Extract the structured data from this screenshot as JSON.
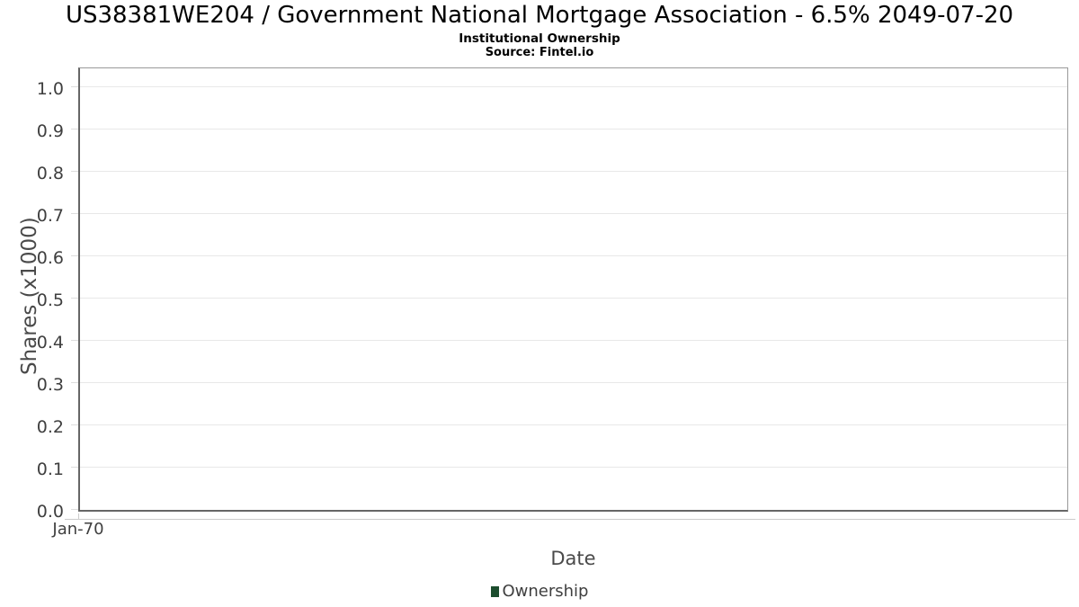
{
  "header": {
    "title": "US38381WE204 / Government National Mortgage Association - 6.5% 2049-07-20",
    "subtitle": "Institutional Ownership",
    "source": "Source: Fintel.io"
  },
  "chart_data": {
    "type": "bar",
    "title": "US38381WE204 / Government National Mortgage Association - 6.5% 2049-07-20",
    "subtitle": "Institutional Ownership",
    "source": "Source: Fintel.io",
    "xlabel": "Date",
    "ylabel": "Shares (x1000)",
    "x_tick_labels": [
      "Jan-70"
    ],
    "y_ticks": [
      "0.0",
      "0.1",
      "0.2",
      "0.3",
      "0.4",
      "0.5",
      "0.6",
      "0.7",
      "0.8",
      "0.9",
      "1.0"
    ],
    "ylim": [
      0,
      1.05
    ],
    "grid": true,
    "legend_position": "bottom",
    "series": [
      {
        "name": "Ownership",
        "color": "#1c4d2e",
        "x": [],
        "values": []
      }
    ]
  },
  "colors": {
    "legend_swatch": "#1c4d2e",
    "gridline": "#e8e8e8",
    "plot_border": "#9a9a9a",
    "axis_line": "#666666",
    "axis_text": "#3f3f3f",
    "title_text": "#000000"
  }
}
